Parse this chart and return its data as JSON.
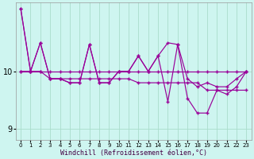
{
  "xlabel": "Windchill (Refroidissement éolien,°C)",
  "bg_color": "#cef5f0",
  "line_color": "#990099",
  "grid_color": "#aaddcc",
  "ylim": [
    8.8,
    11.2
  ],
  "yticks": [
    9,
    10
  ],
  "hours": [
    0,
    1,
    2,
    3,
    4,
    5,
    6,
    7,
    8,
    9,
    10,
    11,
    12,
    13,
    14,
    15,
    16,
    17,
    18,
    19,
    20,
    21,
    22,
    23
  ],
  "s1": [
    10.0,
    10.0,
    10.0,
    9.87,
    9.87,
    9.87,
    9.87,
    9.87,
    9.87,
    9.87,
    9.87,
    9.87,
    9.8,
    9.8,
    9.8,
    9.8,
    9.8,
    9.8,
    9.8,
    9.67,
    9.67,
    9.67,
    9.67,
    9.67
  ],
  "s2": [
    10.0,
    10.0,
    10.0,
    10.0,
    10.0,
    10.0,
    10.0,
    10.0,
    10.0,
    10.0,
    10.0,
    10.0,
    10.0,
    10.0,
    10.0,
    10.0,
    10.0,
    10.0,
    10.0,
    10.0,
    10.0,
    10.0,
    10.0,
    10.0
  ],
  "s3": [
    11.1,
    10.0,
    10.5,
    9.87,
    9.87,
    9.8,
    9.8,
    10.47,
    9.8,
    9.8,
    10.0,
    10.0,
    10.27,
    10.0,
    10.27,
    10.5,
    10.47,
    9.87,
    9.73,
    9.8,
    9.73,
    9.73,
    9.87,
    10.0
  ],
  "s4": [
    11.1,
    10.0,
    10.5,
    9.87,
    9.87,
    9.8,
    9.8,
    10.47,
    9.8,
    9.8,
    10.0,
    10.0,
    10.27,
    10.0,
    10.27,
    9.47,
    10.47,
    9.53,
    9.27,
    9.27,
    9.67,
    9.6,
    9.73,
    10.0
  ]
}
